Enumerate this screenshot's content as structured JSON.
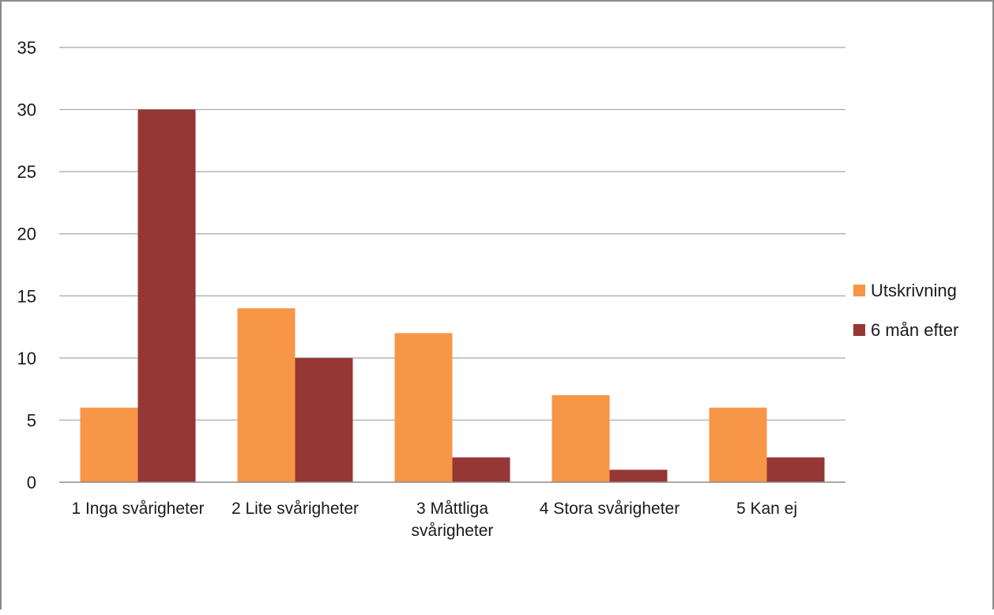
{
  "chart_data": {
    "type": "bar",
    "title": "",
    "xlabel": "",
    "ylabel": "",
    "categories": [
      [
        "1 Inga svårigheter"
      ],
      [
        "2 Lite svårigheter"
      ],
      [
        "3 Måttliga",
        "svårigheter"
      ],
      [
        "4 Stora svårigheter"
      ],
      [
        "5 Kan ej"
      ]
    ],
    "series": [
      {
        "name": "Utskrivning",
        "values": [
          6,
          14,
          12,
          7,
          6
        ],
        "color": "#f79646"
      },
      {
        "name": "6 mån efter",
        "values": [
          30,
          10,
          2,
          1,
          2
        ],
        "color": "#953735"
      }
    ],
    "ylim": [
      0,
      35
    ],
    "yticks": [
      0,
      5,
      10,
      15,
      20,
      25,
      30,
      35
    ],
    "grid": true,
    "legend": "right"
  }
}
